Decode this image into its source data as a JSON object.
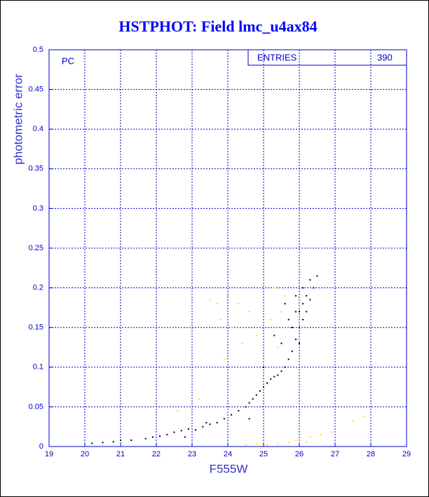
{
  "chart_data": {
    "type": "scatter",
    "title": "HSTPHOT: Field lmc_u4ax84",
    "x_label": "F555W",
    "y_label": "photometric error",
    "annotation": "PC",
    "legend_title": "ENTRIES",
    "entries": "390",
    "xlim": [
      19,
      29
    ],
    "xticks": [
      19,
      20,
      21,
      22,
      23,
      24,
      25,
      26,
      27,
      28,
      29
    ],
    "ylim": [
      0,
      0.5
    ],
    "yticks": [
      0,
      0.05,
      0.1,
      0.15,
      0.2,
      0.25,
      0.3,
      0.35,
      0.4,
      0.45,
      0.5
    ],
    "grid": true,
    "series": [
      {
        "color": "#000000",
        "x": [
          20.2,
          20.5,
          20.8,
          21.0,
          21.3,
          21.7,
          21.9,
          22.1,
          22.3,
          22.5,
          22.7,
          22.9,
          23.1,
          23.3,
          23.5,
          23.7,
          23.9,
          24.1,
          24.3,
          24.5,
          24.6,
          24.7,
          24.8,
          24.9,
          25.0,
          25.1,
          25.2,
          25.3,
          25.4,
          25.5,
          25.6,
          25.7,
          25.8,
          25.9,
          26.0,
          26.0,
          26.1,
          26.1,
          26.2,
          26.2,
          26.3,
          26.3,
          26.4,
          26.5,
          25.9,
          25.7,
          25.8,
          25.5,
          25.3,
          25.0,
          25.6,
          26.0,
          26.1,
          25.9,
          24.6,
          23.4,
          22.8
        ],
        "values": [
          0.004,
          0.005,
          0.006,
          0.008,
          0.008,
          0.01,
          0.012,
          0.013,
          0.015,
          0.018,
          0.02,
          0.022,
          0.021,
          0.025,
          0.028,
          0.03,
          0.035,
          0.04,
          0.045,
          0.05,
          0.055,
          0.06,
          0.065,
          0.07,
          0.075,
          0.08,
          0.085,
          0.088,
          0.09,
          0.095,
          0.1,
          0.11,
          0.12,
          0.135,
          0.15,
          0.17,
          0.18,
          0.2,
          0.19,
          0.17,
          0.185,
          0.21,
          0.2,
          0.215,
          0.19,
          0.16,
          0.15,
          0.13,
          0.14,
          0.1,
          0.18,
          0.13,
          0.16,
          0.17,
          0.035,
          0.03,
          0.012
        ]
      },
      {
        "color": "#e8e800",
        "x": [
          23.5,
          23.7,
          24.0,
          24.3,
          24.6,
          25.0,
          25.3,
          23.8,
          24.1,
          24.4,
          23.9,
          24.0,
          24.8,
          25.2,
          25.5,
          23.2,
          22.6,
          24.5,
          24.8,
          25.1,
          25.4,
          25.7,
          25.9,
          26.0,
          26.3,
          26.6,
          26.9,
          27.5,
          27.8,
          25.6,
          25.4,
          26.2
        ],
        "values": [
          0.185,
          0.18,
          0.19,
          0.18,
          0.17,
          0.21,
          0.2,
          0.16,
          0.15,
          0.13,
          0.11,
          0.12,
          0.14,
          0.16,
          0.17,
          0.06,
          0.045,
          0.002,
          0.003,
          0.002,
          0.004,
          0.005,
          0.008,
          0.009,
          0.012,
          0.015,
          0.018,
          0.032,
          0.038,
          0.19,
          0.125,
          0.006
        ]
      }
    ]
  }
}
